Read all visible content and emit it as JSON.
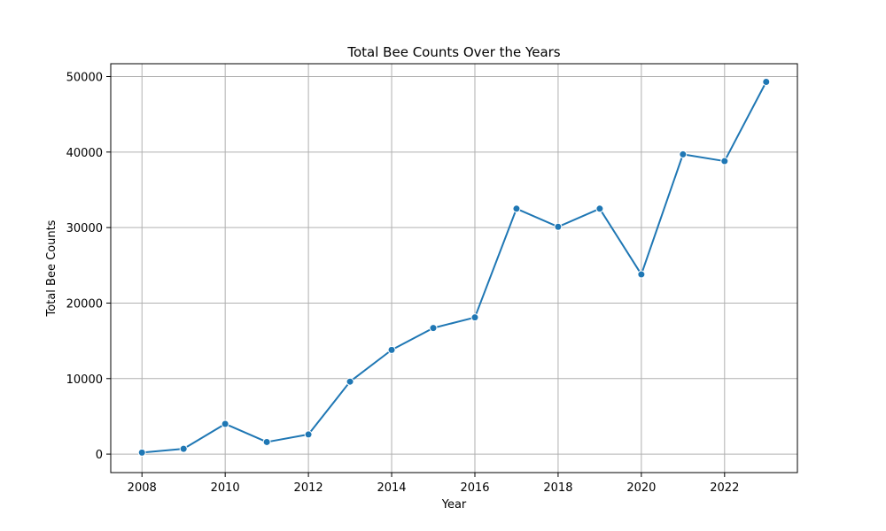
{
  "chart_data": {
    "type": "line",
    "title": "Total Bee Counts Over the Years",
    "xlabel": "Year",
    "ylabel": "Total Bee Counts",
    "x": [
      2008,
      2009,
      2010,
      2011,
      2012,
      2013,
      2014,
      2015,
      2016,
      2017,
      2018,
      2019,
      2020,
      2021,
      2022,
      2023
    ],
    "series": [
      {
        "values": [
          200,
          700,
          4000,
          1600,
          2600,
          9600,
          13800,
          16700,
          18100,
          32500,
          30100,
          32500,
          23800,
          39700,
          38800,
          49300
        ],
        "color": "#1f77b4",
        "marker": "circle"
      }
    ],
    "xlim": [
      2007.25,
      2023.75
    ],
    "ylim": [
      -2450,
      51700
    ],
    "xticks": [
      "2008",
      "2010",
      "2012",
      "2014",
      "2016",
      "2018",
      "2020",
      "2022"
    ],
    "yticks": [
      "0",
      "10000",
      "20000",
      "30000",
      "40000",
      "50000"
    ],
    "grid": true,
    "grid_color": "#b0b0b0",
    "legend": false
  }
}
